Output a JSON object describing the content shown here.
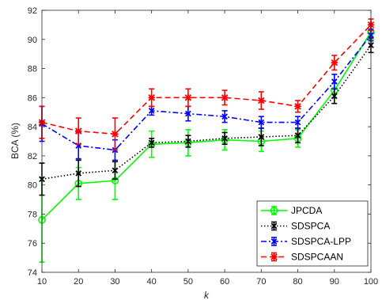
{
  "chart_data": {
    "type": "line",
    "title": "",
    "xlabel": "k",
    "ylabel": "BCA (%)",
    "x": [
      10,
      20,
      30,
      40,
      50,
      60,
      70,
      80,
      90,
      100
    ],
    "xlim": [
      10,
      100
    ],
    "ylim": [
      74,
      92
    ],
    "xticks": [
      "10",
      "20",
      "30",
      "40",
      "50",
      "60",
      "70",
      "80",
      "90",
      "100"
    ],
    "yticks": [
      "74",
      "76",
      "78",
      "80",
      "82",
      "84",
      "86",
      "88",
      "90",
      "92"
    ],
    "grid": false,
    "legend_position": "bottom-right",
    "series": [
      {
        "name": "JPCDA",
        "color": "#00ff00",
        "line_style": "solid",
        "marker": "circle",
        "values": [
          77.6,
          80.1,
          80.3,
          82.8,
          82.9,
          83.1,
          83.0,
          83.2,
          86.5,
          90.5
        ],
        "errors": [
          2.9,
          1.1,
          1.3,
          0.9,
          0.9,
          0.7,
          0.7,
          0.6,
          0.5,
          0.5
        ]
      },
      {
        "name": "SDSPCA",
        "color": "#000000",
        "line_style": "dotted",
        "marker": "x",
        "values": [
          80.4,
          80.8,
          81.0,
          82.9,
          83.0,
          83.2,
          83.3,
          83.4,
          86.1,
          89.6
        ],
        "errors": [
          1.1,
          0.9,
          0.6,
          0.3,
          0.4,
          0.4,
          0.6,
          0.5,
          0.5,
          0.5
        ]
      },
      {
        "name": "SDSPCA-LPP",
        "color": "#0000ff",
        "line_style": "dashdot",
        "marker": "x",
        "values": [
          84.2,
          82.7,
          82.4,
          85.1,
          84.9,
          84.7,
          84.3,
          84.3,
          87.1,
          90.3
        ],
        "errors": [
          1.2,
          0.9,
          0.7,
          0.3,
          0.5,
          0.4,
          0.4,
          0.4,
          0.5,
          0.4
        ]
      },
      {
        "name": "SDSPCAAN",
        "color": "#ff0000",
        "line_style": "dashed",
        "marker": "star",
        "values": [
          84.3,
          83.7,
          83.5,
          86.0,
          86.0,
          86.0,
          85.8,
          85.4,
          88.4,
          91.0
        ],
        "errors": [
          1.1,
          0.9,
          1.1,
          0.6,
          0.6,
          0.5,
          0.6,
          0.4,
          0.5,
          0.4
        ]
      }
    ]
  }
}
